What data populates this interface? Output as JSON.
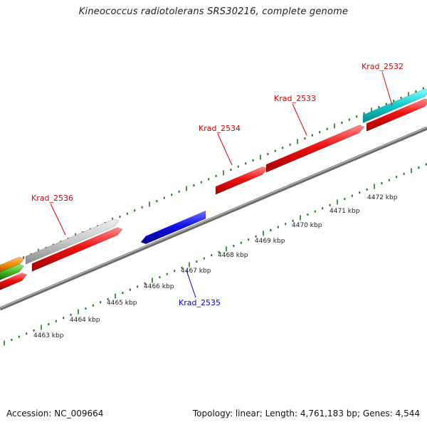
{
  "title": "Kineococcus radiotolerans SRS30216, complete genome",
  "footer": {
    "accession": "Accession: NC_009664",
    "topology": "Topology: linear; Length: 4,761,183 bp; Genes: 4,544"
  },
  "colors": {
    "backbone": "#8c8c8c",
    "tick": "#1a7a1a",
    "label_red": "#e00000",
    "label_blue": "#0000cc",
    "gene_red": "#ee1111",
    "gene_blue": "#1010ee",
    "gene_gray": "#c8c8c8",
    "gene_cyan": "#10c8c8",
    "gene_orange": "#f08a00",
    "gene_green": "#44bb22"
  },
  "scale_labels": [
    "4463 kbp",
    "4464 kbp",
    "4465 kbp",
    "4466 kbp",
    "4467 kbp",
    "4468 kbp",
    "4469 kbp",
    "4470 kbp",
    "4471 kbp",
    "4472 kbp"
  ],
  "gene_labels": [
    {
      "id": "Krad_2532",
      "color": "red"
    },
    {
      "id": "Krad_2533",
      "color": "red"
    },
    {
      "id": "Krad_2534",
      "color": "red"
    },
    {
      "id": "Krad_2535",
      "color": "blue"
    },
    {
      "id": "Krad_2536",
      "color": "red"
    }
  ]
}
